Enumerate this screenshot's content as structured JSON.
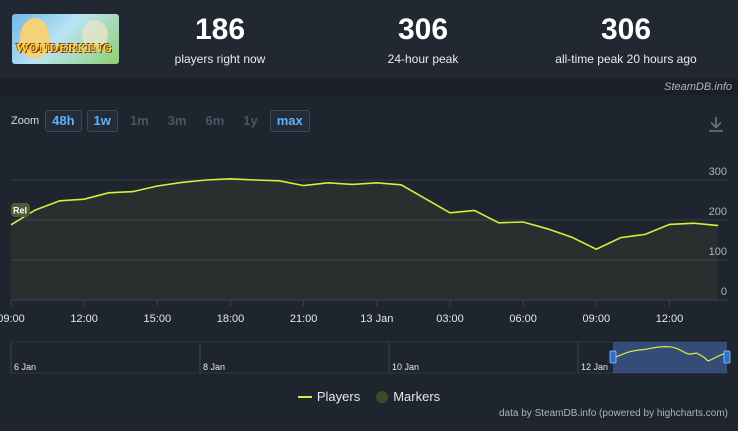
{
  "stats": [
    {
      "value": "186",
      "label": "players right now"
    },
    {
      "value": "306",
      "label": "24-hour peak"
    },
    {
      "value": "306",
      "label": "all-time peak 20 hours ago"
    }
  ],
  "game_logo_text": "WONDERKING",
  "credit_top": "SteamDB.info",
  "zoom": {
    "label": "Zoom",
    "buttons": [
      {
        "label": "48h",
        "active": true
      },
      {
        "label": "1w",
        "active": true
      },
      {
        "label": "1m",
        "active": false
      },
      {
        "label": "3m",
        "active": false
      },
      {
        "label": "6m",
        "active": false
      },
      {
        "label": "1y",
        "active": false
      },
      {
        "label": "max",
        "active": true
      }
    ]
  },
  "chart_data": {
    "type": "area",
    "series": [
      {
        "name": "Players",
        "color": "#d4f03c",
        "x": [
          0,
          1,
          2,
          3,
          4,
          5,
          6,
          7,
          8,
          9,
          10,
          11,
          12,
          13,
          14,
          15,
          16,
          17,
          18,
          19,
          20,
          21,
          22,
          23,
          24,
          25,
          26,
          27,
          28,
          29
        ],
        "y": [
          188,
          225,
          248,
          252,
          268,
          271,
          285,
          294,
          300,
          303,
          300,
          298,
          286,
          293,
          289,
          293,
          288,
          253,
          218,
          224,
          193,
          195,
          178,
          157,
          127,
          156,
          164,
          189,
          192,
          186
        ]
      }
    ],
    "marker_label": "Rel",
    "marker_x": 0,
    "markers_legend": "Markers",
    "x_ticks": [
      {
        "x": 0,
        "label": "09:00"
      },
      {
        "x": 3,
        "label": "12:00"
      },
      {
        "x": 6,
        "label": "15:00"
      },
      {
        "x": 9,
        "label": "18:00"
      },
      {
        "x": 12,
        "label": "21:00"
      },
      {
        "x": 15,
        "label": "13 Jan"
      },
      {
        "x": 18,
        "label": "03:00"
      },
      {
        "x": 21,
        "label": "06:00"
      },
      {
        "x": 24,
        "label": "09:00"
      },
      {
        "x": 27,
        "label": "12:00"
      }
    ],
    "y_ticks": [
      0,
      100,
      200,
      300
    ],
    "ylim": [
      0,
      300
    ],
    "xlim": [
      0,
      29.4
    ],
    "grid": true,
    "navigator": {
      "labels": [
        "6 Jan",
        "8 Jan",
        "10 Jan",
        "12 Jan"
      ],
      "y": [
        140,
        170,
        185,
        200,
        215,
        225,
        232,
        238,
        242,
        248,
        256,
        262,
        268,
        270,
        272,
        270,
        262,
        250,
        230,
        210,
        195,
        200,
        205,
        185,
        160,
        125,
        140,
        160,
        180,
        196,
        186
      ]
    },
    "legend_placement": "bottom-center"
  },
  "credit_bottom": "data by SteamDB.info (powered by highcharts.com)"
}
